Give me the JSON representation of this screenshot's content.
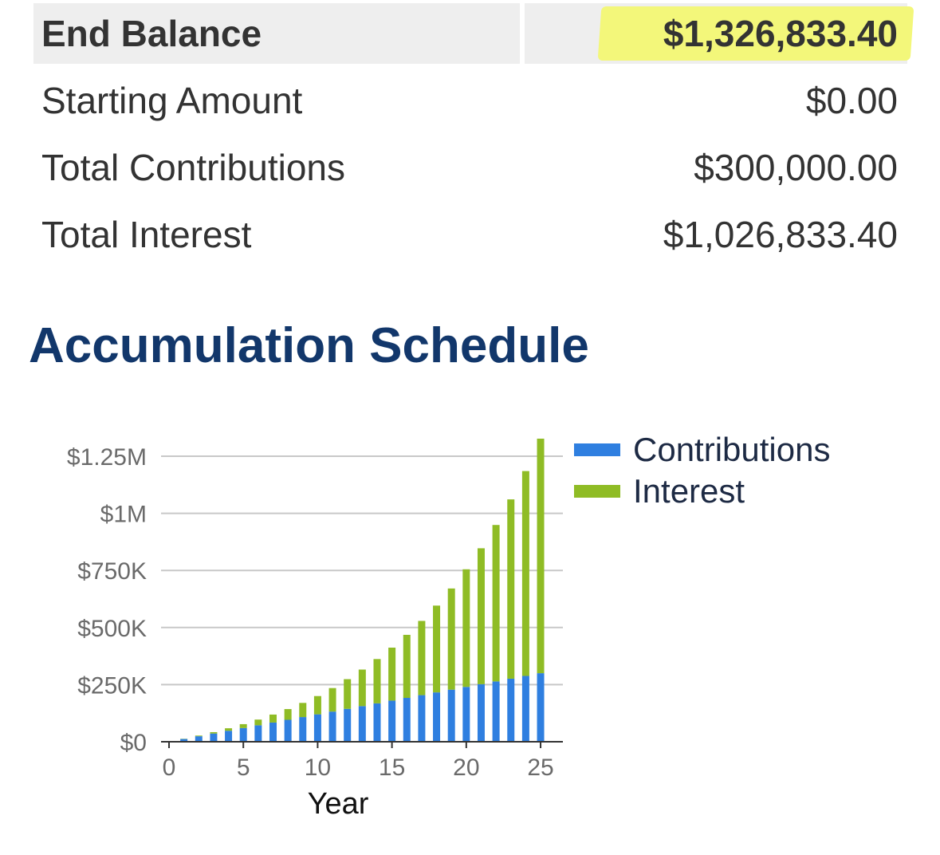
{
  "summary": {
    "end_balance": {
      "label": "End Balance",
      "value": "$1,326,833.40"
    },
    "rows": [
      {
        "label": "Starting Amount",
        "value": "$0.00"
      },
      {
        "label": "Total Contributions",
        "value": "$300,000.00"
      },
      {
        "label": "Total Interest",
        "value": "$1,026,833.40"
      }
    ]
  },
  "section_title": "Accumulation Schedule",
  "colors": {
    "contributions": "#2f7fe0",
    "interest": "#8fbc25",
    "highlight": "#f3f77a",
    "title": "#12376b"
  },
  "chart_data": {
    "type": "bar",
    "stacked": true,
    "xlabel": "Year",
    "ylabel": "",
    "x": [
      1,
      2,
      3,
      4,
      5,
      6,
      7,
      8,
      9,
      10,
      11,
      12,
      13,
      14,
      15,
      16,
      17,
      18,
      19,
      20,
      21,
      22,
      23,
      24,
      25
    ],
    "x_ticks": [
      0,
      5,
      10,
      15,
      20,
      25
    ],
    "y_ticks": [
      {
        "value": 0,
        "label": "$0"
      },
      {
        "value": 250000,
        "label": "$250K"
      },
      {
        "value": 500000,
        "label": "$500K"
      },
      {
        "value": 750000,
        "label": "$750K"
      },
      {
        "value": 1000000,
        "label": "$1M"
      },
      {
        "value": 1250000,
        "label": "$1.25M"
      }
    ],
    "xlim": [
      0,
      26.5
    ],
    "ylim": [
      0,
      1250000
    ],
    "grid": true,
    "legend_position": "top-right",
    "series": [
      {
        "name": "Contributions",
        "color": "#2f7fe0",
        "values": [
          12000,
          24000,
          36000,
          48000,
          60000,
          72000,
          84000,
          96000,
          108000,
          120000,
          132000,
          144000,
          156000,
          168000,
          180000,
          192000,
          204000,
          216000,
          228000,
          240000,
          252000,
          264000,
          276000,
          288000,
          300000
        ]
      },
      {
        "name": "Interest",
        "color": "#8fbc25",
        "values": [
          1000,
          3000,
          6000,
          11000,
          17000,
          25000,
          35000,
          47000,
          62000,
          80000,
          103000,
          130000,
          160000,
          194000,
          232000,
          276000,
          325000,
          380000,
          443000,
          515000,
          595000,
          685000,
          785000,
          897000,
          1026833
        ]
      }
    ]
  }
}
